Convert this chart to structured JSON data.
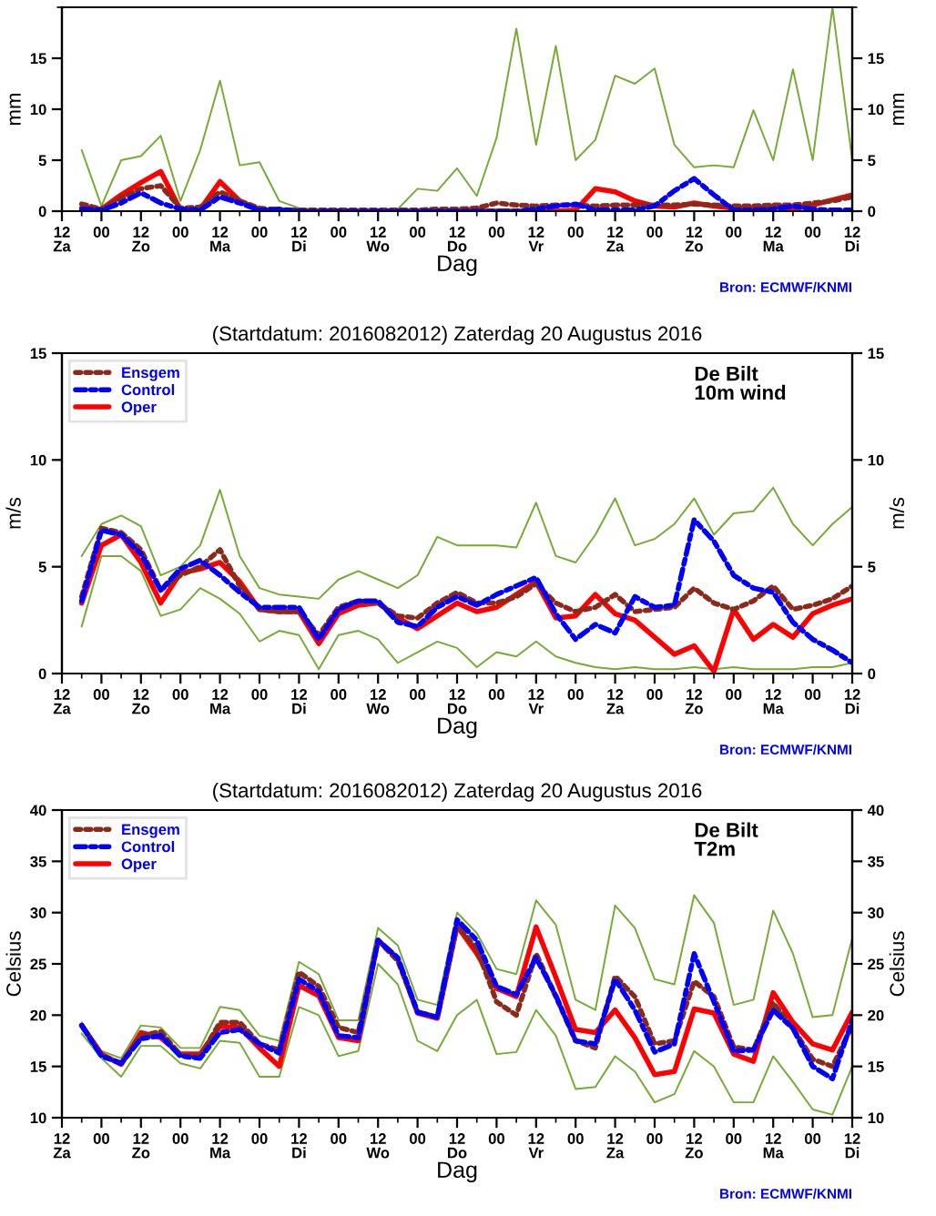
{
  "chart_data": [
    {
      "type": "line",
      "xlabel": "Dag",
      "ylabel": "mm",
      "y2label": "mm",
      "legend": false,
      "grid": false,
      "annotations": [
        "Bron: ECMWF/KNMI"
      ],
      "categories": [
        "12\nZa",
        null,
        "00",
        null,
        "12\nZo",
        null,
        "00",
        null,
        "12\nMa",
        null,
        "00",
        null,
        "12\nDi",
        null,
        "00",
        null,
        "12\nWo",
        null,
        "00",
        null,
        "12\nDo",
        null,
        "00",
        null,
        "12\nVr",
        null,
        "00",
        null,
        "12\nZa",
        null,
        "00",
        null,
        "12\nZo",
        null,
        "00",
        null,
        "12\nMa",
        null,
        "00",
        null,
        "12\nDi"
      ],
      "ylim": [
        0,
        20
      ],
      "yticks": [
        0,
        5,
        10,
        15,
        {
          "value": 20,
          "label": null
        }
      ],
      "y2lim": [
        0,
        20
      ],
      "y2ticks": [
        0,
        5,
        10,
        15,
        {
          "value": 20,
          "label": null
        }
      ],
      "series": [
        {
          "color": "#77aa33",
          "line_style": "solid",
          "values": [
            null,
            6.0,
            0.5,
            5.0,
            5.4,
            7.4,
            1.0,
            6.0,
            12.8,
            4.5,
            4.8,
            1.0,
            0.3,
            0.1,
            0.1,
            0.1,
            0.1,
            0.2,
            2.2,
            2.0,
            4.2,
            1.5,
            7.2,
            17.9,
            6.5,
            16.2,
            5.0,
            7.0,
            13.3,
            12.5,
            14.0,
            6.5,
            4.3,
            4.5,
            4.3,
            9.9,
            5.0,
            13.9,
            5.0,
            20.0,
            5.0
          ]
        },
        {
          "color": "#8b2a1a",
          "line_style": "dotted",
          "values": [
            null,
            0.7,
            0.2,
            1.3,
            2.2,
            2.5,
            0.3,
            0.4,
            1.9,
            1.0,
            0.3,
            0.1,
            0.1,
            0.1,
            0.1,
            0.1,
            0.1,
            0.1,
            0.1,
            0.2,
            0.2,
            0.3,
            0.8,
            0.6,
            0.5,
            0.6,
            0.6,
            0.5,
            0.6,
            0.6,
            0.6,
            0.6,
            0.7,
            0.6,
            0.5,
            0.5,
            0.6,
            0.6,
            0.8,
            1.0,
            1.4
          ]
        },
        {
          "color": "#0000ff",
          "line_style": "dashdot",
          "values": [
            null,
            0.2,
            0.1,
            0.8,
            1.8,
            0.8,
            0.2,
            0.1,
            1.4,
            0.8,
            0.1,
            0.2,
            0,
            0,
            0,
            0,
            0,
            0,
            0,
            0,
            0,
            0,
            0,
            0,
            0.2,
            0.5,
            0.7,
            0.1,
            0.1,
            0.1,
            0.5,
            2.0,
            3.2,
            1.6,
            0.1,
            0.1,
            0.2,
            0.5,
            0.2,
            0.1,
            0.1
          ]
        },
        {
          "color": "#ff0000",
          "line_style": "solid",
          "values": [
            null,
            0.3,
            0.2,
            1.6,
            2.8,
            3.9,
            0.1,
            0.2,
            2.9,
            1.0,
            0.1,
            0,
            0,
            0,
            0,
            0,
            0,
            0,
            0,
            0,
            0,
            0,
            0,
            0,
            0,
            0,
            0.1,
            2.2,
            1.9,
            1.0,
            0.5,
            0.4,
            0.8,
            0.5,
            0.3,
            0.2,
            0.5,
            0.2,
            0.6,
            1.1,
            1.6
          ]
        }
      ]
    },
    {
      "type": "line",
      "title": "(Startdatum: 2016082012) Zaterdag 20 Augustus 2016",
      "xlabel": "Dag",
      "ylabel": "m/s",
      "y2label": "m/s",
      "legend": "top left",
      "grid": false,
      "annotations": [
        "De Bilt\n10m wind",
        "Bron: ECMWF/KNMI"
      ],
      "categories": [
        "12\nZa",
        null,
        "00",
        null,
        "12\nZo",
        null,
        "00",
        null,
        "12\nMa",
        null,
        "00",
        null,
        "12\nDi",
        null,
        "00",
        null,
        "12\nWo",
        null,
        "00",
        null,
        "12\nDo",
        null,
        "00",
        null,
        "12\nVr",
        null,
        "00",
        null,
        "12\nZa",
        null,
        "00",
        null,
        "12\nZo",
        null,
        "00",
        null,
        "12\nMa",
        null,
        "00",
        null,
        "12\nDi"
      ],
      "ylim": [
        0,
        15
      ],
      "yticks": [
        0,
        5,
        10,
        15
      ],
      "y2lim": [
        0,
        15
      ],
      "y2ticks": [
        0,
        5,
        10,
        15
      ],
      "series": [
        {
          "color": "#77aa33",
          "line_style": "solid",
          "values": [
            null,
            5.5,
            7.0,
            7.4,
            6.9,
            4.6,
            5.0,
            6.0,
            8.6,
            5.5,
            4.0,
            3.7,
            3.6,
            3.5,
            4.4,
            4.8,
            4.4,
            4.0,
            4.6,
            6.4,
            6.0,
            6.0,
            6.0,
            5.9,
            8.0,
            5.5,
            5.2,
            6.5,
            8.2,
            6.0,
            6.3,
            7.0,
            8.2,
            6.5,
            7.5,
            7.6,
            8.7,
            7.0,
            6.0,
            7.0,
            7.8
          ]
        },
        {
          "color": "#77aa33",
          "line_style": "solid",
          "values": [
            null,
            2.2,
            5.5,
            5.5,
            4.8,
            2.7,
            3.0,
            4.0,
            3.5,
            2.8,
            1.5,
            2.0,
            1.8,
            0.2,
            1.8,
            2.0,
            1.6,
            0.5,
            1.0,
            1.5,
            1.2,
            0.3,
            1.0,
            0.8,
            1.5,
            0.8,
            0.5,
            0.3,
            0.2,
            0.3,
            0.2,
            0.2,
            0.3,
            0.2,
            0.3,
            0.2,
            0.2,
            0.2,
            0.3,
            0.3,
            0.5
          ]
        },
        {
          "name": "Ensgem",
          "color": "#8b2a1a",
          "line_style": "dotted",
          "values": [
            null,
            3.6,
            6.8,
            6.6,
            5.8,
            3.9,
            4.6,
            5.0,
            5.8,
            4.1,
            3.0,
            2.9,
            2.9,
            1.8,
            3.1,
            3.4,
            3.3,
            2.7,
            2.6,
            3.3,
            3.8,
            3.3,
            3.3,
            3.6,
            4.2,
            3.3,
            2.9,
            3.1,
            3.7,
            2.9,
            3.0,
            3.1,
            4.0,
            3.3,
            3.0,
            3.4,
            4.1,
            3.0,
            3.2,
            3.5,
            4.1
          ]
        },
        {
          "name": "Control",
          "color": "#0000ff",
          "line_style": "dashdot",
          "values": [
            null,
            3.4,
            6.7,
            6.5,
            5.6,
            3.9,
            4.9,
            5.3,
            4.6,
            3.8,
            3.1,
            3.1,
            3.1,
            1.6,
            3.0,
            3.4,
            3.4,
            2.4,
            2.2,
            3.1,
            3.6,
            3.2,
            3.7,
            4.1,
            4.5,
            2.8,
            1.6,
            2.3,
            1.9,
            3.6,
            3.1,
            3.2,
            7.2,
            6.2,
            4.6,
            4.0,
            3.8,
            2.4,
            1.6,
            1.1,
            0.5
          ]
        },
        {
          "name": "Oper",
          "color": "#ff0000",
          "line_style": "solid",
          "values": [
            null,
            3.3,
            6.0,
            6.5,
            5.2,
            3.3,
            4.7,
            4.9,
            5.2,
            4.3,
            3.0,
            2.9,
            2.9,
            1.4,
            2.8,
            3.2,
            3.3,
            2.6,
            2.1,
            2.7,
            3.3,
            2.9,
            3.1,
            3.7,
            4.3,
            2.6,
            2.7,
            3.7,
            2.8,
            2.5,
            1.7,
            0.9,
            1.3,
            0.1,
            3.0,
            1.6,
            2.3,
            1.7,
            2.8,
            3.2,
            3.5
          ]
        }
      ]
    },
    {
      "type": "line",
      "title": "(Startdatum: 2016082012) Zaterdag 20 Augustus 2016",
      "xlabel": "Dag",
      "ylabel": "Celsius",
      "y2label": "Celsius",
      "legend": "top left",
      "grid": false,
      "annotations": [
        "De Bilt\nT2m",
        "Bron: ECMWF/KNMI"
      ],
      "categories": [
        "12\nZa",
        null,
        "00",
        null,
        "12\nZo",
        null,
        "00",
        null,
        "12\nMa",
        null,
        "00",
        null,
        "12\nDi",
        null,
        "00",
        null,
        "12\nWo",
        null,
        "00",
        null,
        "12\nDo",
        null,
        "00",
        null,
        "12\nVr",
        null,
        "00",
        null,
        "12\nZa",
        null,
        "00",
        null,
        "12\nZo",
        null,
        "00",
        null,
        "12\nMa",
        null,
        "00",
        null,
        "12\nDi"
      ],
      "ylim": [
        10,
        40
      ],
      "yticks": [
        10,
        15,
        20,
        25,
        30,
        35,
        40
      ],
      "y2lim": [
        10,
        40
      ],
      "y2ticks": [
        10,
        15,
        20,
        25,
        30,
        35,
        40
      ],
      "series": [
        {
          "color": "#77aa33",
          "line_style": "solid",
          "values": [
            null,
            19.3,
            16.5,
            15.8,
            19.0,
            18.8,
            16.8,
            16.8,
            20.8,
            20.5,
            18.0,
            17.5,
            25.2,
            24.0,
            19.5,
            19.5,
            28.5,
            26.8,
            21.5,
            21.0,
            30.0,
            28.0,
            24.5,
            24.0,
            31.2,
            28.8,
            21.5,
            20.5,
            30.7,
            28.5,
            23.5,
            23.0,
            31.7,
            29.0,
            21.0,
            21.5,
            30.2,
            26.0,
            19.8,
            20.0,
            27.5
          ]
        },
        {
          "color": "#77aa33",
          "line_style": "solid",
          "values": [
            null,
            18.2,
            15.8,
            14.0,
            17.0,
            17.0,
            15.3,
            14.8,
            17.5,
            17.3,
            14.0,
            14.0,
            20.8,
            20.0,
            16.0,
            16.5,
            25.0,
            23.0,
            17.5,
            16.5,
            20.0,
            21.5,
            16.2,
            16.4,
            20.5,
            18.0,
            12.8,
            13.0,
            16.0,
            14.5,
            11.5,
            12.3,
            16.5,
            15.0,
            11.5,
            11.5,
            16.0,
            13.5,
            10.8,
            10.3,
            15.0
          ]
        },
        {
          "name": "Ensgem",
          "color": "#8b2a1a",
          "line_style": "dotted",
          "values": [
            null,
            19.0,
            16.1,
            15.3,
            18.0,
            18.4,
            16.1,
            16.0,
            19.3,
            19.3,
            17.2,
            16.6,
            24.2,
            22.8,
            18.8,
            18.3,
            27.3,
            25.3,
            20.3,
            19.8,
            28.7,
            26.5,
            21.3,
            20.0,
            26.0,
            21.8,
            17.5,
            16.8,
            23.8,
            21.8,
            17.2,
            17.5,
            23.3,
            21.8,
            16.9,
            16.6,
            21.2,
            18.7,
            15.7,
            15.0,
            19.0
          ]
        },
        {
          "name": "Control",
          "color": "#0000ff",
          "line_style": "dashdot",
          "values": [
            null,
            19.0,
            16.0,
            15.3,
            17.7,
            18.0,
            16.0,
            15.8,
            18.3,
            18.6,
            17.2,
            16.3,
            23.5,
            22.3,
            18.0,
            17.8,
            27.3,
            25.6,
            20.3,
            19.8,
            29.3,
            27.3,
            22.8,
            22.0,
            25.6,
            21.9,
            17.5,
            17.2,
            23.5,
            20.5,
            16.4,
            17.2,
            26.0,
            21.3,
            16.5,
            16.6,
            20.5,
            18.7,
            15.0,
            13.8,
            19.5
          ]
        },
        {
          "name": "Oper",
          "color": "#ff0000",
          "line_style": "solid",
          "values": [
            null,
            19.0,
            16.2,
            15.2,
            18.3,
            17.8,
            16.2,
            16.2,
            18.9,
            18.8,
            16.8,
            15.0,
            22.9,
            21.9,
            17.8,
            17.5,
            27.3,
            25.5,
            20.2,
            19.7,
            28.7,
            26.0,
            22.6,
            21.8,
            28.6,
            23.7,
            18.6,
            18.3,
            20.5,
            17.8,
            14.2,
            14.5,
            20.6,
            20.2,
            16.2,
            15.5,
            22.2,
            19.3,
            17.2,
            16.6,
            20.3
          ]
        }
      ]
    }
  ]
}
